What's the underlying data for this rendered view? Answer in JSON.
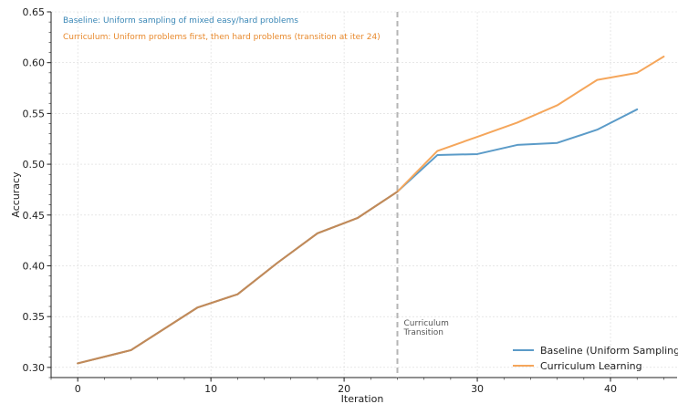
{
  "chart_data": {
    "type": "line",
    "xlabel": "Iteration",
    "ylabel": "Accuracy",
    "xlim": [
      -2,
      45
    ],
    "ylim": [
      0.29,
      0.65
    ],
    "xticks": [
      0,
      10,
      20,
      30,
      40
    ],
    "yticks": [
      0.3,
      0.35,
      0.4,
      0.45,
      0.5,
      0.55,
      0.6,
      0.65
    ],
    "grid": true,
    "legend_position": "bottom-right",
    "series": [
      {
        "name": "Baseline (Uniform Sampling)",
        "color": "#5b9bc8",
        "x": [
          0,
          4,
          9,
          12,
          15,
          18,
          21,
          24,
          27,
          30,
          33,
          36,
          39,
          42
        ],
        "y": [
          0.304,
          0.317,
          0.359,
          0.372,
          0.403,
          0.432,
          0.447,
          0.473,
          0.509,
          0.51,
          0.519,
          0.521,
          0.534,
          0.554
        ]
      },
      {
        "name": "Curriculum Learning",
        "color": "#f5a65b",
        "x": [
          0,
          4,
          9,
          12,
          15,
          18,
          21,
          24,
          27,
          30,
          33,
          36,
          39,
          42,
          44
        ],
        "y": [
          0.304,
          0.317,
          0.359,
          0.372,
          0.403,
          0.432,
          0.447,
          0.473,
          0.513,
          0.527,
          0.541,
          0.558,
          0.583,
          0.59,
          0.606
        ]
      }
    ],
    "overlap_color": "#c08a5a",
    "transition": {
      "x": 24,
      "color": "#b5b5b5",
      "label_line1": "Curriculum",
      "label_line2": "Transition",
      "label_color": "#555555"
    },
    "annotations": [
      {
        "text": "Baseline: Uniform sampling of mixed easy/hard problems",
        "color": "#3a87b6"
      },
      {
        "text": "Curriculum: Uniform problems first, then hard problems (transition at iter 24)",
        "color": "#e8892c"
      }
    ]
  }
}
